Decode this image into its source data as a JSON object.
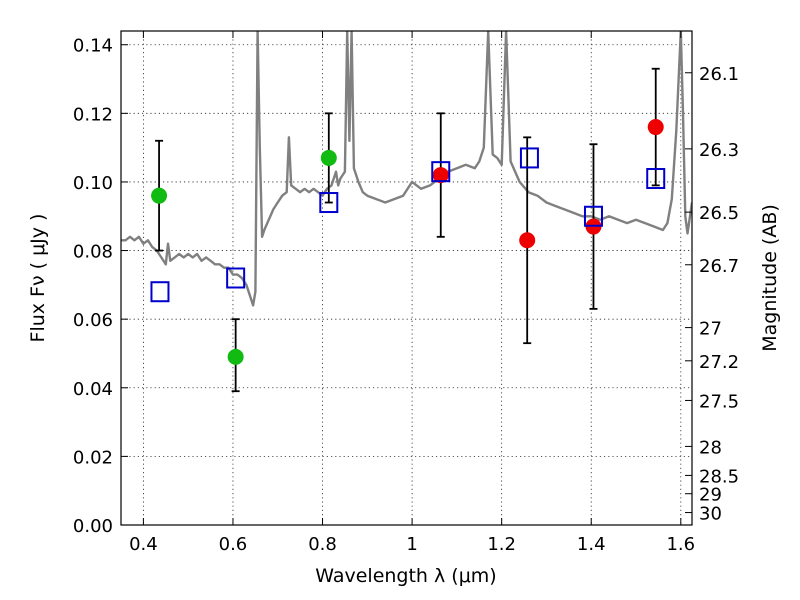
{
  "chart_data": {
    "type": "scatter",
    "xlabel": "Wavelength  λ (μm)",
    "ylabel_left": "Flux  Fν  ( μJy )",
    "ylabel_right": "Magnitude (AB)",
    "xlim": [
      0.35,
      1.625
    ],
    "ylim": [
      0.0,
      0.144
    ],
    "x_ticks": [
      0.4,
      0.6,
      0.8,
      1.0,
      1.2,
      1.4,
      1.6
    ],
    "x_tick_labels": [
      "0.4",
      "0.6",
      "0.8",
      "1",
      "1.2",
      "1.4",
      "1.6"
    ],
    "y_ticks": [
      0.0,
      0.02,
      0.04,
      0.06,
      0.08,
      0.1,
      0.12,
      0.14
    ],
    "y_tick_labels": [
      "0.00",
      "0.02",
      "0.04",
      "0.06",
      "0.08",
      "0.10",
      "0.12",
      "0.14"
    ],
    "right_ticks": [
      {
        "mag": 26.1,
        "label": "26.1"
      },
      {
        "mag": 26.3,
        "label": "26.3"
      },
      {
        "mag": 26.5,
        "label": "26.5"
      },
      {
        "mag": 26.7,
        "label": "26.7"
      },
      {
        "mag": 27.0,
        "label": "27"
      },
      {
        "mag": 27.2,
        "label": "27.2"
      },
      {
        "mag": 27.5,
        "label": "27.5"
      },
      {
        "mag": 28.0,
        "label": "28"
      },
      {
        "mag": 28.5,
        "label": "28.5"
      },
      {
        "mag": 29.0,
        "label": "29"
      },
      {
        "mag": 30.0,
        "label": "30"
      }
    ],
    "grid": true,
    "colors": {
      "spectrum": "#808080",
      "green": "#11bb11",
      "red": "#ee0000",
      "model": "#0000cc",
      "errorbar": "#000000"
    },
    "series": [
      {
        "marker": "circle",
        "color": "#11bb11",
        "points": [
          {
            "x": 0.435,
            "y": 0.096,
            "err": [
              0.08,
              0.112
            ]
          },
          {
            "x": 0.606,
            "y": 0.049,
            "err": [
              0.039,
              0.06
            ]
          },
          {
            "x": 0.814,
            "y": 0.107,
            "err": [
              0.094,
              0.12
            ]
          }
        ]
      },
      {
        "marker": "circle",
        "color": "#ee0000",
        "points": [
          {
            "x": 1.064,
            "y": 0.102,
            "err": [
              0.084,
              0.12
            ]
          },
          {
            "x": 1.257,
            "y": 0.083,
            "err": [
              0.053,
              0.113
            ]
          },
          {
            "x": 1.405,
            "y": 0.087,
            "err": [
              0.063,
              0.111
            ]
          },
          {
            "x": 1.544,
            "y": 0.116,
            "err": [
              0.099,
              0.133
            ]
          }
        ]
      },
      {
        "marker": "open-square",
        "color": "#0000cc",
        "points": [
          {
            "x": 0.437,
            "y": 0.068
          },
          {
            "x": 0.606,
            "y": 0.072
          },
          {
            "x": 0.814,
            "y": 0.094
          },
          {
            "x": 1.064,
            "y": 0.103
          },
          {
            "x": 1.262,
            "y": 0.107
          },
          {
            "x": 1.405,
            "y": 0.09
          },
          {
            "x": 1.544,
            "y": 0.101
          }
        ]
      },
      {
        "type": "line",
        "color": "#808080",
        "points": [
          [
            0.35,
            0.083
          ],
          [
            0.36,
            0.083
          ],
          [
            0.37,
            0.084
          ],
          [
            0.38,
            0.083
          ],
          [
            0.39,
            0.084
          ],
          [
            0.4,
            0.082
          ],
          [
            0.41,
            0.083
          ],
          [
            0.42,
            0.081
          ],
          [
            0.43,
            0.08
          ],
          [
            0.44,
            0.078
          ],
          [
            0.45,
            0.076
          ],
          [
            0.455,
            0.082
          ],
          [
            0.46,
            0.077
          ],
          [
            0.47,
            0.078
          ],
          [
            0.48,
            0.079
          ],
          [
            0.49,
            0.078
          ],
          [
            0.5,
            0.079
          ],
          [
            0.51,
            0.078
          ],
          [
            0.52,
            0.079
          ],
          [
            0.53,
            0.077
          ],
          [
            0.54,
            0.078
          ],
          [
            0.55,
            0.077
          ],
          [
            0.56,
            0.076
          ],
          [
            0.57,
            0.076
          ],
          [
            0.58,
            0.075
          ],
          [
            0.59,
            0.075
          ],
          [
            0.6,
            0.073
          ],
          [
            0.61,
            0.073
          ],
          [
            0.62,
            0.072
          ],
          [
            0.63,
            0.07
          ],
          [
            0.64,
            0.066
          ],
          [
            0.645,
            0.064
          ],
          [
            0.65,
            0.068
          ],
          [
            0.655,
            0.144
          ],
          [
            0.66,
            0.11
          ],
          [
            0.665,
            0.084
          ],
          [
            0.67,
            0.086
          ],
          [
            0.68,
            0.089
          ],
          [
            0.69,
            0.092
          ],
          [
            0.7,
            0.094
          ],
          [
            0.71,
            0.096
          ],
          [
            0.72,
            0.097
          ],
          [
            0.725,
            0.113
          ],
          [
            0.73,
            0.099
          ],
          [
            0.74,
            0.098
          ],
          [
            0.75,
            0.097
          ],
          [
            0.76,
            0.098
          ],
          [
            0.77,
            0.097
          ],
          [
            0.78,
            0.098
          ],
          [
            0.79,
            0.097
          ],
          [
            0.8,
            0.096
          ],
          [
            0.81,
            0.098
          ],
          [
            0.82,
            0.099
          ],
          [
            0.83,
            0.103
          ],
          [
            0.835,
            0.099
          ],
          [
            0.84,
            0.101
          ],
          [
            0.85,
            0.103
          ],
          [
            0.855,
            0.144
          ],
          [
            0.86,
            0.112
          ],
          [
            0.865,
            0.144
          ],
          [
            0.87,
            0.104
          ],
          [
            0.88,
            0.1
          ],
          [
            0.89,
            0.097
          ],
          [
            0.9,
            0.096
          ],
          [
            0.92,
            0.095
          ],
          [
            0.94,
            0.094
          ],
          [
            0.96,
            0.095
          ],
          [
            0.98,
            0.096
          ],
          [
            1.0,
            0.1
          ],
          [
            1.02,
            0.098
          ],
          [
            1.04,
            0.099
          ],
          [
            1.06,
            0.101
          ],
          [
            1.08,
            0.103
          ],
          [
            1.1,
            0.104
          ],
          [
            1.12,
            0.105
          ],
          [
            1.14,
            0.104
          ],
          [
            1.15,
            0.106
          ],
          [
            1.16,
            0.11
          ],
          [
            1.17,
            0.144
          ],
          [
            1.18,
            0.108
          ],
          [
            1.19,
            0.107
          ],
          [
            1.2,
            0.105
          ],
          [
            1.21,
            0.144
          ],
          [
            1.22,
            0.106
          ],
          [
            1.24,
            0.1
          ],
          [
            1.26,
            0.097
          ],
          [
            1.28,
            0.096
          ],
          [
            1.3,
            0.094
          ],
          [
            1.32,
            0.093
          ],
          [
            1.34,
            0.092
          ],
          [
            1.36,
            0.091
          ],
          [
            1.38,
            0.09
          ],
          [
            1.4,
            0.09
          ],
          [
            1.42,
            0.089
          ],
          [
            1.44,
            0.09
          ],
          [
            1.46,
            0.089
          ],
          [
            1.48,
            0.088
          ],
          [
            1.5,
            0.089
          ],
          [
            1.52,
            0.088
          ],
          [
            1.54,
            0.087
          ],
          [
            1.56,
            0.086
          ],
          [
            1.57,
            0.088
          ],
          [
            1.58,
            0.095
          ],
          [
            1.59,
            0.115
          ],
          [
            1.6,
            0.144
          ],
          [
            1.605,
            0.12
          ],
          [
            1.61,
            0.09
          ],
          [
            1.615,
            0.085
          ],
          [
            1.625,
            0.094
          ]
        ]
      }
    ]
  }
}
